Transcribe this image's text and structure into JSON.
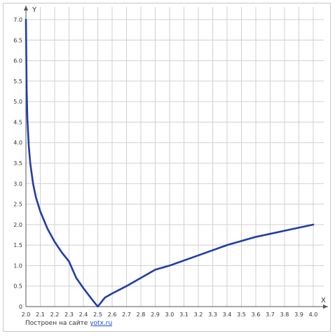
{
  "chart_data": {
    "type": "line",
    "xlabel": "X",
    "ylabel": "Y",
    "xlim": [
      2.0,
      4.0
    ],
    "ylim": [
      0,
      7.0
    ],
    "grid": true,
    "x_ticks": [
      "2.0",
      "2.1",
      "2.2",
      "2.3",
      "2.4",
      "2.5",
      "2.6",
      "2.7",
      "2.8",
      "2.9",
      "3.0",
      "3.1",
      "3.2",
      "3.3",
      "3.4",
      "3.5",
      "3.6",
      "3.7",
      "3.8",
      "3.9",
      "4.0"
    ],
    "y_ticks": [
      "0",
      "0.5",
      "1.0",
      "1.5",
      "2.0",
      "2.5",
      "3.0",
      "3.5",
      "4.0",
      "4.5",
      "5.0",
      "5.5",
      "6.0",
      "6.5",
      "7.0"
    ],
    "series": [
      {
        "color": "#1f3ea6",
        "x": [
          2.0,
          2.005,
          2.01,
          2.02,
          2.03,
          2.05,
          2.07,
          2.1,
          2.15,
          2.2,
          2.25,
          2.3,
          2.35,
          2.4,
          2.45,
          2.5,
          2.55,
          2.6,
          2.7,
          2.8,
          2.9,
          3.0,
          3.2,
          3.4,
          3.6,
          3.8,
          4.0
        ],
        "y": [
          7.0,
          5.3,
          4.58,
          3.91,
          3.5,
          2.99,
          2.66,
          2.32,
          1.9,
          1.58,
          1.32,
          1.1,
          0.7,
          0.45,
          0.22,
          0.0,
          0.22,
          0.32,
          0.5,
          0.7,
          0.9,
          1.0,
          1.25,
          1.5,
          1.7,
          1.85,
          2.0
        ]
      }
    ]
  },
  "footer": {
    "text": "Построен на сайте",
    "link": "yotx.ru"
  }
}
